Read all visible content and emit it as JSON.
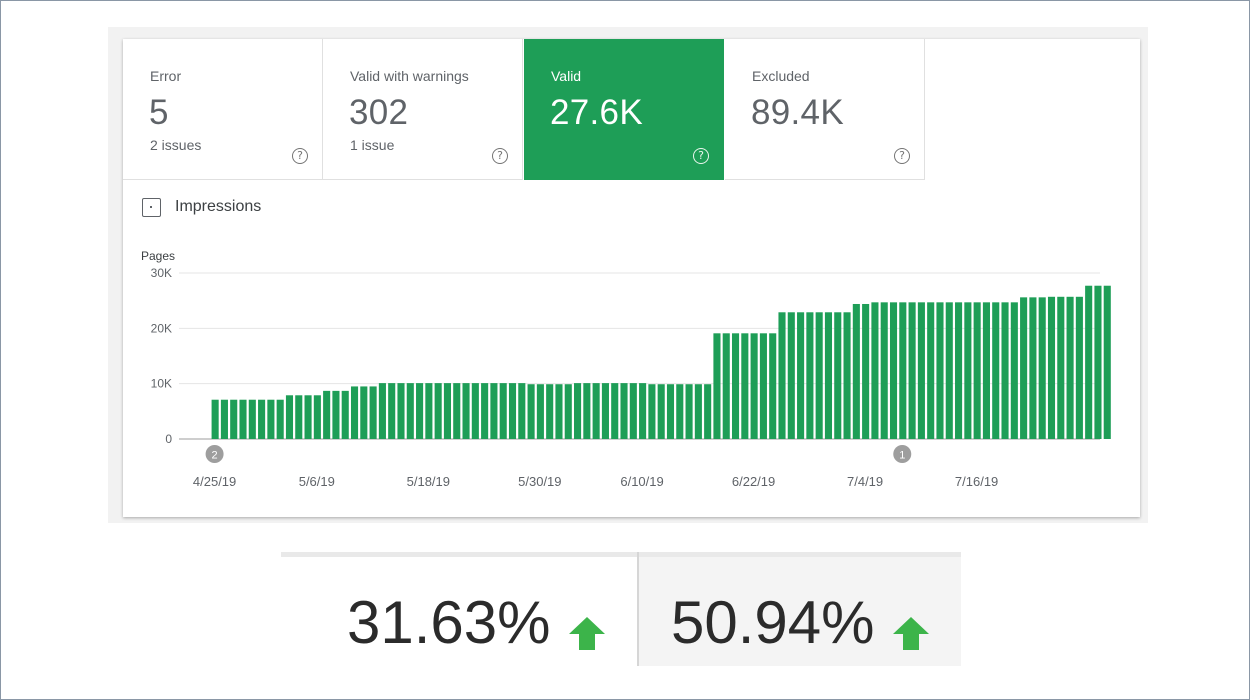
{
  "tiles": [
    {
      "label": "Error",
      "value": "5",
      "sub": "2 issues",
      "active": false
    },
    {
      "label": "Valid with warnings",
      "value": "302",
      "sub": "1 issue",
      "active": false
    },
    {
      "label": "Valid",
      "value": "27.6K",
      "sub": "",
      "active": true
    },
    {
      "label": "Excluded",
      "value": "89.4K",
      "sub": "",
      "active": false
    }
  ],
  "help_icon_glyph": "?",
  "impressions_label": "Impressions",
  "colors": {
    "bar": "#1e9e57",
    "active_tile": "#1e9e57",
    "arrow": "#3cb44a",
    "marker": "#9e9e9e",
    "grid": "#e5e5e5"
  },
  "chart_data": {
    "type": "bar",
    "ylabel": "Pages",
    "yticks": [
      {
        "value": 0,
        "label": "0"
      },
      {
        "value": 10000,
        "label": "10K"
      },
      {
        "value": 20000,
        "label": "20K"
      },
      {
        "value": 30000,
        "label": "30K"
      }
    ],
    "ylim": [
      0,
      30000
    ],
    "grid": true,
    "xlim": [
      "2019-04-23",
      "2019-07-31"
    ],
    "xticks": [
      {
        "date": "2019-04-25",
        "label": "4/25/19"
      },
      {
        "date": "2019-05-06",
        "label": "5/6/19"
      },
      {
        "date": "2019-05-18",
        "label": "5/18/19"
      },
      {
        "date": "2019-05-30",
        "label": "5/30/19"
      },
      {
        "date": "2019-06-10",
        "label": "6/10/19"
      },
      {
        "date": "2019-06-22",
        "label": "6/22/19"
      },
      {
        "date": "2019-07-04",
        "label": "7/4/19"
      },
      {
        "date": "2019-07-16",
        "label": "7/16/19"
      }
    ],
    "markers": [
      {
        "date": "2019-04-25",
        "label": "2"
      },
      {
        "date": "2019-07-08",
        "label": "1"
      }
    ],
    "start_date": "2019-04-25",
    "values": [
      7100,
      7100,
      7100,
      7100,
      7100,
      7100,
      7100,
      7100,
      7900,
      7900,
      7900,
      7900,
      8700,
      8700,
      8700,
      9500,
      9500,
      9500,
      10100,
      10100,
      10100,
      10100,
      10100,
      10100,
      10100,
      10100,
      10100,
      10100,
      10100,
      10100,
      10100,
      10100,
      10100,
      10100,
      9900,
      9900,
      9900,
      9900,
      9900,
      10100,
      10100,
      10100,
      10100,
      10100,
      10100,
      10100,
      10100,
      9900,
      9900,
      9900,
      9900,
      9900,
      9900,
      9900,
      19100,
      19100,
      19100,
      19100,
      19100,
      19100,
      19100,
      22900,
      22900,
      22900,
      22900,
      22900,
      22900,
      22900,
      22900,
      24400,
      24400,
      24700,
      24700,
      24700,
      24700,
      24700,
      24700,
      24700,
      24700,
      24700,
      24700,
      24700,
      24700,
      24700,
      24700,
      24700,
      24700,
      25600,
      25600,
      25600,
      25700,
      25700,
      25700,
      25700,
      27700,
      27700,
      27700
    ]
  },
  "metrics": [
    {
      "value": "31.63%",
      "icon": "arrow-up-icon"
    },
    {
      "value": "50.94%",
      "icon": "arrow-up-icon"
    }
  ]
}
